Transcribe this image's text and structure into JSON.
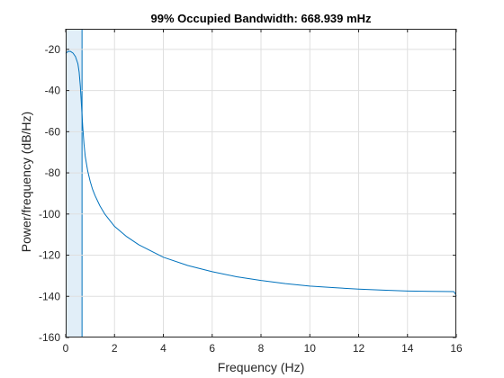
{
  "chart_data": {
    "type": "line",
    "title": "99% Occupied Bandwidth: 668.939 mHz",
    "xlabel": "Frequency (Hz)",
    "ylabel": "Power/frequency (dB/Hz)",
    "xlim": [
      0,
      16
    ],
    "ylim": [
      -160,
      -10
    ],
    "xticks": [
      0,
      2,
      4,
      6,
      8,
      10,
      12,
      14,
      16
    ],
    "xtick_labels": [
      "0",
      "2",
      "4",
      "6",
      "8",
      "10",
      "12",
      "14",
      "16"
    ],
    "yticks": [
      -160,
      -140,
      -120,
      -100,
      -80,
      -60,
      -40,
      -20
    ],
    "ytick_labels": [
      "-160",
      "-140",
      "-120",
      "-100",
      "-80",
      "-60",
      "-40",
      "-20"
    ],
    "grid": true,
    "series": [
      {
        "x": [
          0,
          0.05,
          0.1,
          0.2,
          0.3,
          0.4,
          0.5,
          0.55,
          0.6,
          0.65,
          0.7,
          0.75,
          0.8,
          0.9,
          1.0,
          1.1,
          1.2,
          1.4,
          1.6,
          1.8,
          2.0,
          2.5,
          3.0,
          3.5,
          4.0,
          5.0,
          6.0,
          7.0,
          8.0,
          9.0,
          10.0,
          11.0,
          12.0,
          13.0,
          14.0,
          15.0,
          15.9,
          15.97,
          16.0
        ],
        "y": [
          -22,
          -21.5,
          -21,
          -21,
          -21.8,
          -23.5,
          -27,
          -31,
          -38,
          -48,
          -58,
          -66,
          -72,
          -79,
          -84,
          -88,
          -91,
          -96,
          -100,
          -103,
          -106,
          -111,
          -115,
          -118,
          -121,
          -125,
          -128,
          -130.5,
          -132.3,
          -133.8,
          -135,
          -135.8,
          -136.5,
          -137,
          -137.4,
          -137.6,
          -137.7,
          -139,
          -140
        ]
      }
    ],
    "band": {
      "x_start": 0,
      "x_end": 0.669
    },
    "colors": {
      "line": "#0072bd",
      "band_fill": "#dcebf7",
      "band_edge": "#0072bd",
      "grid": "#dfdfdf",
      "axes": "#262626"
    }
  }
}
